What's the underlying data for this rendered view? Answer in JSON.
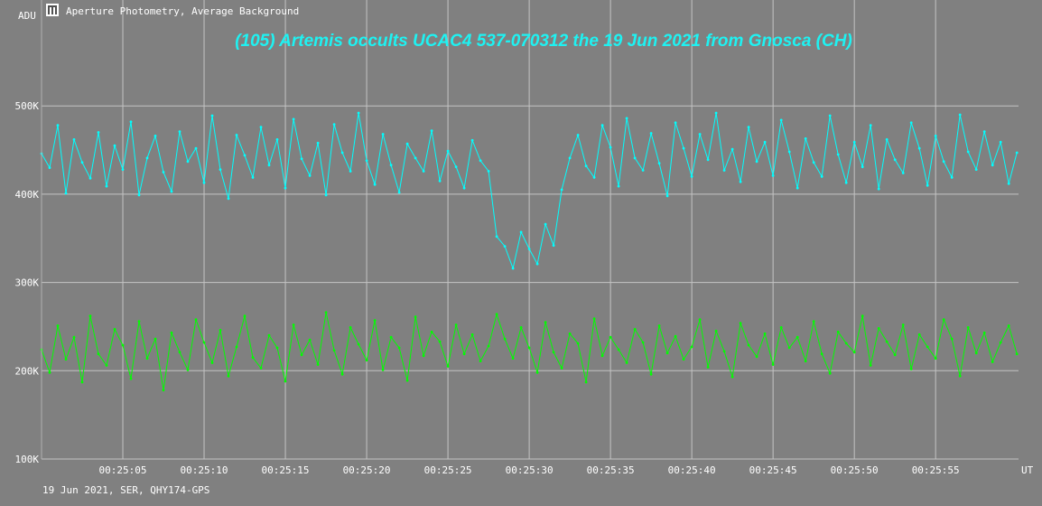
{
  "window": {
    "title": "Aperture Photometry, Average Background",
    "footer": "19 Jun 2021, SER, QHY174-GPS"
  },
  "chart_data": {
    "type": "line",
    "title": "(105) Artemis occults UCAC4 537-070312 the 19 Jun 2021 from Gnosca (CH)",
    "ylabel": "ADU",
    "xlabel": "UT",
    "ylim": [
      100000,
      620000
    ],
    "y_ticks": [
      {
        "value": 100000,
        "label": "100K"
      },
      {
        "value": 200000,
        "label": "200K"
      },
      {
        "value": 300000,
        "label": "300K"
      },
      {
        "value": 400000,
        "label": "400K"
      },
      {
        "value": 500000,
        "label": "500K"
      }
    ],
    "xlim": [
      0.0,
      60.1
    ],
    "x_ticks": [
      {
        "value": 5,
        "label": "00:25:05"
      },
      {
        "value": 10,
        "label": "00:25:10"
      },
      {
        "value": 15,
        "label": "00:25:15"
      },
      {
        "value": 20,
        "label": "00:25:20"
      },
      {
        "value": 25,
        "label": "00:25:25"
      },
      {
        "value": 30,
        "label": "00:25:30"
      },
      {
        "value": 35,
        "label": "00:25:35"
      },
      {
        "value": 40,
        "label": "00:25:40"
      },
      {
        "value": 45,
        "label": "00:25:45"
      },
      {
        "value": 50,
        "label": "00:25:50"
      },
      {
        "value": 55,
        "label": "00:25:55"
      }
    ],
    "grid": true,
    "series": [
      {
        "color": "#00ffff",
        "x": [
          0.0,
          0.5,
          1.0,
          1.5,
          2.0,
          2.5,
          3.0,
          3.5,
          4.0,
          4.5,
          5.0,
          5.5,
          6.0,
          6.5,
          7.0,
          7.5,
          8.0,
          8.5,
          9.0,
          9.5,
          10.0,
          10.5,
          11.0,
          11.5,
          12.0,
          12.5,
          13.0,
          13.5,
          14.0,
          14.5,
          15.0,
          15.5,
          16.0,
          16.5,
          17.0,
          17.5,
          18.0,
          18.5,
          19.0,
          19.5,
          20.0,
          20.5,
          21.0,
          21.5,
          22.0,
          22.5,
          23.0,
          23.5,
          24.0,
          24.5,
          25.0,
          25.5,
          26.0,
          26.5,
          27.0,
          27.5,
          28.0,
          28.5,
          29.0,
          29.5,
          30.0,
          30.5,
          31.0,
          31.5,
          32.0,
          32.5,
          33.0,
          33.5,
          34.0,
          34.5,
          35.0,
          35.5,
          36.0,
          36.5,
          37.0,
          37.5,
          38.0,
          38.5,
          39.0,
          39.5,
          40.0,
          40.5,
          41.0,
          41.5,
          42.0,
          42.5,
          43.0,
          43.5,
          44.0,
          44.5,
          45.0,
          45.5,
          46.0,
          46.5,
          47.0,
          47.5,
          48.0,
          48.5,
          49.0,
          49.5,
          50.0,
          50.5,
          51.0,
          51.5,
          52.0,
          52.5,
          53.0,
          53.5,
          54.0,
          54.5,
          55.0,
          55.5,
          56.0,
          56.5,
          57.0,
          57.5,
          58.0,
          58.5,
          59.0,
          59.5,
          60.0
        ],
        "y": [
          446000,
          430000,
          478000,
          401000,
          462000,
          436000,
          418000,
          470000,
          409000,
          455000,
          428000,
          482000,
          399000,
          441000,
          466000,
          425000,
          403000,
          471000,
          437000,
          452000,
          413000,
          489000,
          428000,
          395000,
          467000,
          444000,
          419000,
          476000,
          433000,
          462000,
          407000,
          485000,
          440000,
          421000,
          458000,
          399000,
          479000,
          447000,
          426000,
          492000,
          438000,
          411000,
          468000,
          433000,
          402000,
          457000,
          441000,
          426000,
          472000,
          415000,
          449000,
          431000,
          407000,
          461000,
          438000,
          426000,
          352000,
          341000,
          316000,
          357000,
          338000,
          321000,
          366000,
          342000,
          405000,
          441000,
          467000,
          432000,
          419000,
          478000,
          453000,
          409000,
          486000,
          441000,
          427000,
          469000,
          435000,
          398000,
          481000,
          452000,
          420000,
          468000,
          439000,
          492000,
          427000,
          451000,
          414000,
          476000,
          437000,
          459000,
          421000,
          484000,
          448000,
          407000,
          463000,
          436000,
          420000,
          489000,
          445000,
          413000,
          459000,
          431000,
          478000,
          406000,
          462000,
          439000,
          424000,
          481000,
          452000,
          410000,
          466000,
          437000,
          419000,
          490000,
          448000,
          428000,
          471000,
          433000,
          459000,
          412000,
          447000
        ]
      },
      {
        "color": "#00ff00",
        "x": [
          0.0,
          0.5,
          1.0,
          1.5,
          2.0,
          2.5,
          3.0,
          3.5,
          4.0,
          4.5,
          5.0,
          5.5,
          6.0,
          6.5,
          7.0,
          7.5,
          8.0,
          8.5,
          9.0,
          9.5,
          10.0,
          10.5,
          11.0,
          11.5,
          12.0,
          12.5,
          13.0,
          13.5,
          14.0,
          14.5,
          15.0,
          15.5,
          16.0,
          16.5,
          17.0,
          17.5,
          18.0,
          18.5,
          19.0,
          19.5,
          20.0,
          20.5,
          21.0,
          21.5,
          22.0,
          22.5,
          23.0,
          23.5,
          24.0,
          24.5,
          25.0,
          25.5,
          26.0,
          26.5,
          27.0,
          27.5,
          28.0,
          28.5,
          29.0,
          29.5,
          30.0,
          30.5,
          31.0,
          31.5,
          32.0,
          32.5,
          33.0,
          33.5,
          34.0,
          34.5,
          35.0,
          35.5,
          36.0,
          36.5,
          37.0,
          37.5,
          38.0,
          38.5,
          39.0,
          39.5,
          40.0,
          40.5,
          41.0,
          41.5,
          42.0,
          42.5,
          43.0,
          43.5,
          44.0,
          44.5,
          45.0,
          45.5,
          46.0,
          46.5,
          47.0,
          47.5,
          48.0,
          48.5,
          49.0,
          49.5,
          50.0,
          50.5,
          51.0,
          51.5,
          52.0,
          52.5,
          53.0,
          53.5,
          54.0,
          54.5,
          55.0,
          55.5,
          56.0,
          56.5,
          57.0,
          57.5,
          58.0,
          58.5,
          59.0,
          59.5,
          60.0
        ],
        "y": [
          224000,
          198000,
          251000,
          213000,
          238000,
          187000,
          262000,
          219000,
          206000,
          247000,
          229000,
          191000,
          256000,
          214000,
          236000,
          178000,
          243000,
          221000,
          201000,
          258000,
          232000,
          209000,
          246000,
          194000,
          227000,
          262000,
          215000,
          203000,
          240000,
          226000,
          188000,
          252000,
          218000,
          235000,
          207000,
          266000,
          223000,
          196000,
          249000,
          230000,
          212000,
          257000,
          201000,
          238000,
          226000,
          189000,
          261000,
          217000,
          244000,
          233000,
          205000,
          252000,
          219000,
          241000,
          211000,
          228000,
          264000,
          236000,
          214000,
          249000,
          226000,
          198000,
          255000,
          221000,
          203000,
          242000,
          231000,
          187000,
          259000,
          217000,
          238000,
          224000,
          209000,
          247000,
          232000,
          196000,
          251000,
          220000,
          239000,
          213000,
          227000,
          258000,
          204000,
          245000,
          222000,
          193000,
          254000,
          229000,
          216000,
          242000,
          207000,
          249000,
          226000,
          238000,
          211000,
          256000,
          219000,
          197000,
          244000,
          231000,
          221000,
          262000,
          206000,
          248000,
          233000,
          218000,
          252000,
          202000,
          241000,
          227000,
          214000,
          258000,
          236000,
          194000,
          249000,
          220000,
          243000,
          210000,
          232000,
          251000,
          219000
        ]
      }
    ]
  }
}
